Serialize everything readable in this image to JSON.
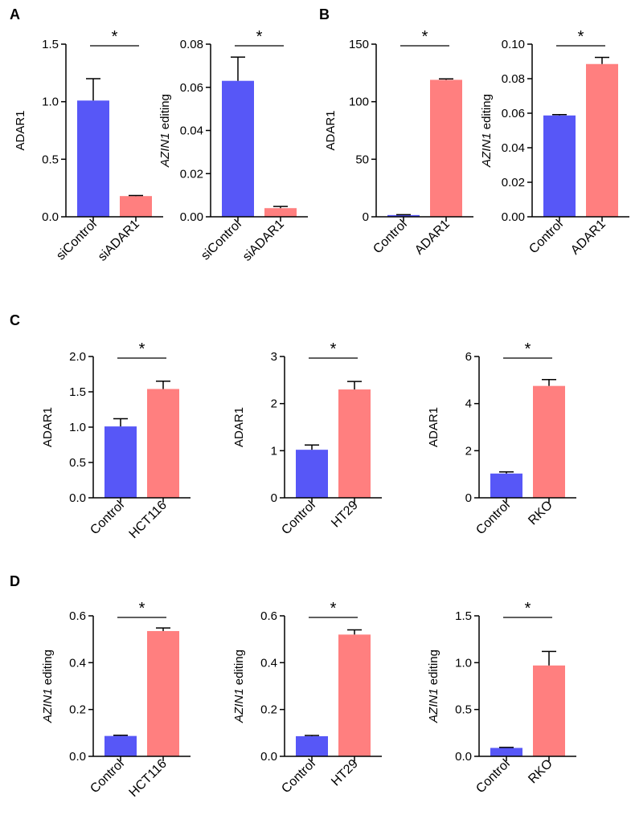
{
  "figure": {
    "panel_letters": [
      "A",
      "B",
      "C",
      "D"
    ]
  },
  "colors": {
    "control_bar": "#5757F7",
    "treatment_bar": "#FF7F7F",
    "axis": "#000000"
  },
  "chart_data": [
    {
      "panel": "A",
      "type": "bar",
      "ylabel": "ADAR1",
      "ylabel_italic": "",
      "ylabel_suffix": "",
      "categories": [
        "siControl",
        "siADAR1"
      ],
      "values": [
        1.01,
        0.18
      ],
      "errors": [
        0.19,
        0.005
      ],
      "ylim": [
        0,
        1.5
      ],
      "yticks": [
        "0.0",
        "0.5",
        "1.0",
        "1.5"
      ],
      "significance": "*"
    },
    {
      "panel": "A",
      "type": "bar",
      "ylabel": "",
      "ylabel_italic": "AZIN1",
      "ylabel_suffix": " editing",
      "categories": [
        "siControl",
        "siADAR1"
      ],
      "values": [
        0.063,
        0.004
      ],
      "errors": [
        0.011,
        0.0008
      ],
      "ylim": [
        0,
        0.08
      ],
      "yticks": [
        "0.00",
        "0.02",
        "0.04",
        "0.06",
        "0.08"
      ],
      "significance": "*"
    },
    {
      "panel": "B",
      "type": "bar",
      "ylabel": "ADAR1",
      "ylabel_italic": "",
      "ylabel_suffix": "",
      "categories": [
        "Control",
        "ADAR1"
      ],
      "values": [
        1.5,
        119
      ],
      "errors": [
        0.3,
        0.8
      ],
      "ylim": [
        0,
        150
      ],
      "yticks": [
        "0",
        "50",
        "100",
        "150"
      ],
      "significance": "*"
    },
    {
      "panel": "B",
      "type": "bar",
      "ylabel": "",
      "ylabel_italic": "AZIN1",
      "ylabel_suffix": " editing",
      "categories": [
        "Control",
        "ADAR1"
      ],
      "values": [
        0.0587,
        0.0885
      ],
      "errors": [
        0.0005,
        0.0038
      ],
      "ylim": [
        0,
        0.1
      ],
      "yticks": [
        "0.00",
        "0.02",
        "0.04",
        "0.06",
        "0.08",
        "0.10"
      ],
      "significance": "*"
    },
    {
      "panel": "C",
      "type": "bar",
      "ylabel": "ADAR1",
      "ylabel_italic": "",
      "ylabel_suffix": "",
      "categories": [
        "Control",
        "HCT116"
      ],
      "values": [
        1.01,
        1.54
      ],
      "errors": [
        0.11,
        0.11
      ],
      "ylim": [
        0,
        2.0
      ],
      "yticks": [
        "0.0",
        "0.5",
        "1.0",
        "1.5",
        "2.0"
      ],
      "significance": "*"
    },
    {
      "panel": "C",
      "type": "bar",
      "ylabel": "ADAR1",
      "ylabel_italic": "",
      "ylabel_suffix": "",
      "categories": [
        "Control",
        "HT29"
      ],
      "values": [
        1.02,
        2.3
      ],
      "errors": [
        0.1,
        0.17
      ],
      "ylim": [
        0,
        3
      ],
      "yticks": [
        "0",
        "1",
        "2",
        "3"
      ],
      "significance": "*"
    },
    {
      "panel": "C",
      "type": "bar",
      "ylabel": "ADAR1",
      "ylabel_italic": "",
      "ylabel_suffix": "",
      "categories": [
        "Control",
        "RKO"
      ],
      "values": [
        1.03,
        4.75
      ],
      "errors": [
        0.07,
        0.27
      ],
      "ylim": [
        0,
        6
      ],
      "yticks": [
        "0",
        "2",
        "4",
        "6"
      ],
      "significance": "*"
    },
    {
      "panel": "D",
      "type": "bar",
      "ylabel": "",
      "ylabel_italic": "AZIN1",
      "ylabel_suffix": " editing",
      "categories": [
        "Control",
        "HCT116"
      ],
      "values": [
        0.087,
        0.535
      ],
      "errors": [
        0.003,
        0.013
      ],
      "ylim": [
        0,
        0.6
      ],
      "yticks": [
        "0.0",
        "0.2",
        "0.4",
        "0.6"
      ],
      "significance": "*"
    },
    {
      "panel": "D",
      "type": "bar",
      "ylabel": "",
      "ylabel_italic": "AZIN1",
      "ylabel_suffix": " editing",
      "categories": [
        "Control",
        "HT29"
      ],
      "values": [
        0.086,
        0.52
      ],
      "errors": [
        0.003,
        0.02
      ],
      "ylim": [
        0,
        0.6
      ],
      "yticks": [
        "0.0",
        "0.2",
        "0.4",
        "0.6"
      ],
      "significance": "*"
    },
    {
      "panel": "D",
      "type": "bar",
      "ylabel": "",
      "ylabel_italic": "AZIN1",
      "ylabel_suffix": " editing",
      "categories": [
        "Control",
        "RKO"
      ],
      "values": [
        0.09,
        0.97
      ],
      "errors": [
        0.005,
        0.15
      ],
      "ylim": [
        0,
        1.5
      ],
      "yticks": [
        "0.0",
        "0.5",
        "1.0",
        "1.5"
      ],
      "significance": "*"
    }
  ]
}
